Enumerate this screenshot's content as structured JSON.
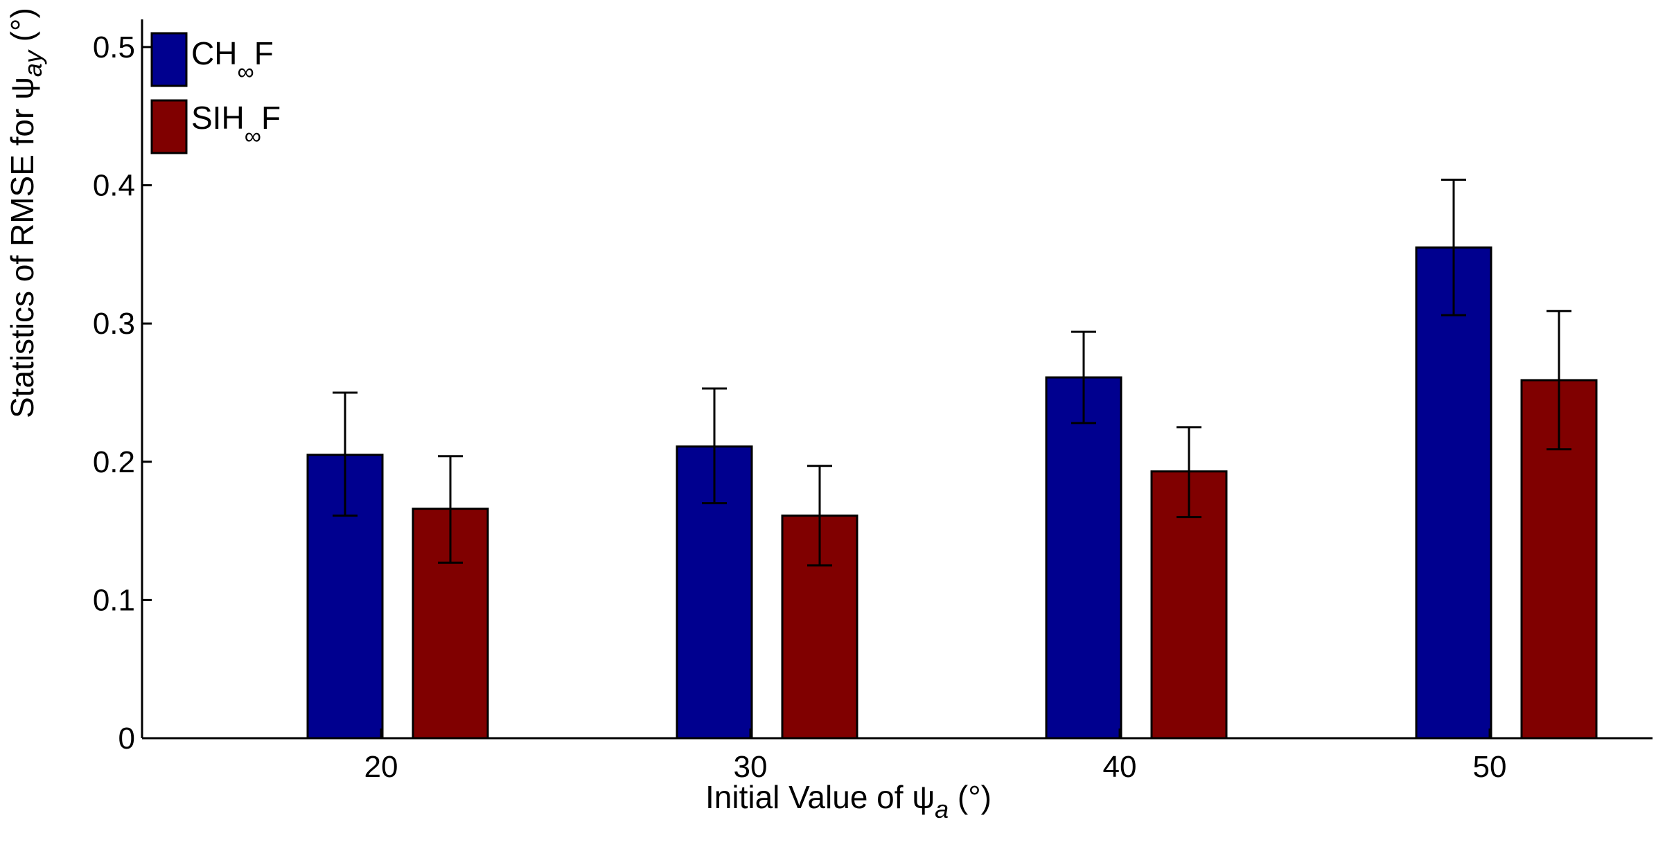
{
  "chart_data": {
    "type": "bar",
    "title": "",
    "categories": [
      "20",
      "30",
      "40",
      "50"
    ],
    "series": [
      {
        "name": "CH∞F",
        "name_main": "CH",
        "name_sub": "∞",
        "name_tail": "F",
        "color": "#00008F",
        "values": [
          0.205,
          0.211,
          0.261,
          0.355
        ],
        "err_low": [
          0.161,
          0.17,
          0.228,
          0.306
        ],
        "err_high": [
          0.25,
          0.253,
          0.294,
          0.404
        ]
      },
      {
        "name": "SIH∞F",
        "name_main": "SIH",
        "name_sub": "∞",
        "name_tail": "F",
        "color": "#800000",
        "values": [
          0.166,
          0.161,
          0.193,
          0.259
        ],
        "err_low": [
          0.127,
          0.125,
          0.16,
          0.209
        ],
        "err_high": [
          0.204,
          0.197,
          0.225,
          0.309
        ]
      }
    ],
    "xlabel": {
      "prefix": "Initial Value of ",
      "symbol": "ψ",
      "subscript": "a",
      "unit": " (°)"
    },
    "ylabel": {
      "prefix": "Statistics of RMSE for ",
      "symbol": "ψ",
      "subscript": "ay",
      "unit": " (°)"
    },
    "ylim": [
      0,
      0.52
    ],
    "yticks": [
      0,
      0.1,
      0.2,
      0.3,
      0.4,
      0.5
    ],
    "ytick_labels": [
      "0",
      "0.1",
      "0.2",
      "0.3",
      "0.4",
      "0.5"
    ],
    "grid": false,
    "legend_position": "top-left"
  }
}
